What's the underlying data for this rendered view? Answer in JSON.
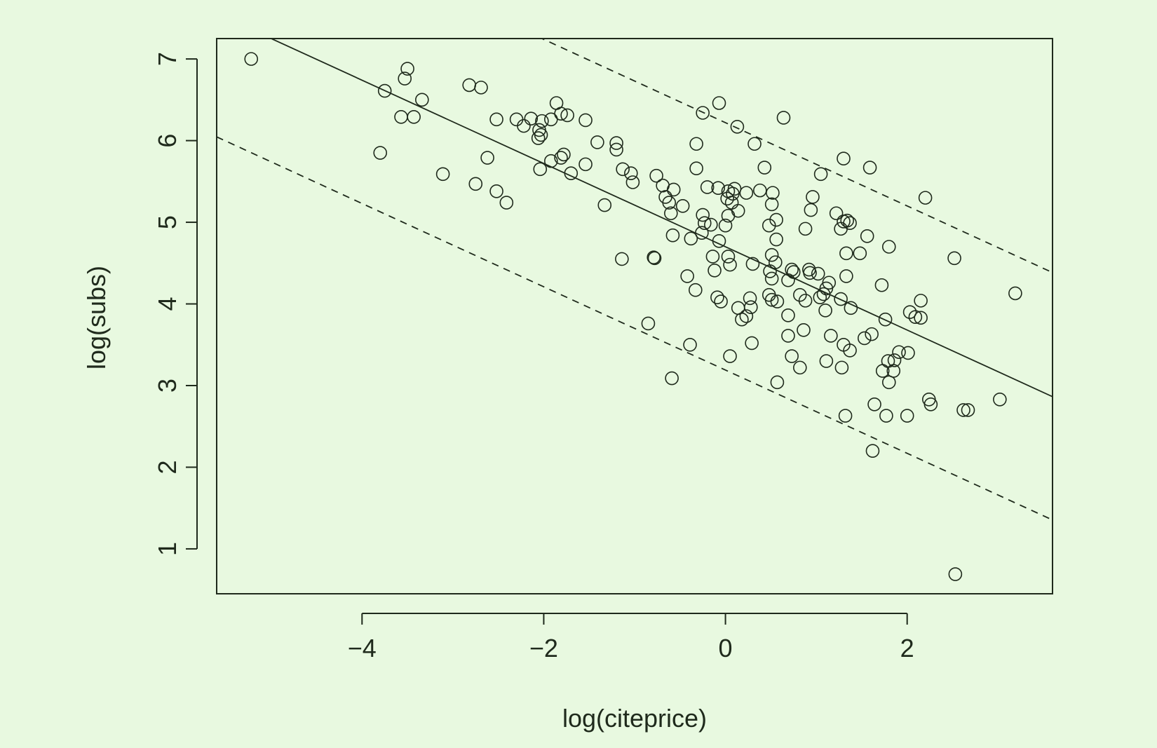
{
  "colors": {
    "background": "#e8f9e0",
    "ink": "#1f2a1c"
  },
  "chart_data": {
    "type": "scatter",
    "title": "",
    "xlabel": "log(citeprice)",
    "ylabel": "log(subs)",
    "xlim": [
      -5.6,
      3.6
    ],
    "ylim": [
      0.45,
      7.25
    ],
    "x_ticks": [
      -4,
      -2,
      0,
      2
    ],
    "x_tick_labels": [
      "−4",
      "−2",
      "0",
      "2"
    ],
    "y_ticks": [
      1,
      2,
      3,
      4,
      5,
      6,
      7
    ],
    "y_tick_labels": [
      "1",
      "2",
      "3",
      "4",
      "5",
      "6",
      "7"
    ],
    "grid": false,
    "legend": "none",
    "marker": "open-circle",
    "lines": [
      {
        "style": "solid",
        "intercept": 4.7,
        "slope": -0.51
      },
      {
        "style": "dashed",
        "intercept": 6.22,
        "slope": -0.51
      },
      {
        "style": "dashed",
        "intercept": 3.19,
        "slope": -0.51
      }
    ],
    "points": [
      [
        -5.22,
        7.0
      ],
      [
        -3.5,
        6.88
      ],
      [
        -3.53,
        6.76
      ],
      [
        -3.75,
        6.61
      ],
      [
        -3.34,
        6.5
      ],
      [
        -3.57,
        6.29
      ],
      [
        -3.43,
        6.29
      ],
      [
        -3.8,
        5.85
      ],
      [
        -3.11,
        5.59
      ],
      [
        -2.82,
        6.68
      ],
      [
        -2.69,
        6.65
      ],
      [
        -2.52,
        6.26
      ],
      [
        -2.3,
        6.26
      ],
      [
        -2.14,
        6.27
      ],
      [
        -2.22,
        6.18
      ],
      [
        -2.02,
        6.24
      ],
      [
        -2.05,
        6.13
      ],
      [
        -2.06,
        6.03
      ],
      [
        -2.03,
        6.07
      ],
      [
        -1.86,
        6.46
      ],
      [
        -1.92,
        6.26
      ],
      [
        -1.81,
        6.33
      ],
      [
        -1.74,
        6.31
      ],
      [
        -1.54,
        6.25
      ],
      [
        -2.62,
        5.79
      ],
      [
        -1.78,
        5.83
      ],
      [
        -1.92,
        5.75
      ],
      [
        -1.81,
        5.79
      ],
      [
        -2.04,
        5.65
      ],
      [
        -1.7,
        5.6
      ],
      [
        -1.54,
        5.71
      ],
      [
        -1.41,
        5.98
      ],
      [
        -1.2,
        5.97
      ],
      [
        -1.2,
        5.89
      ],
      [
        -1.13,
        5.65
      ],
      [
        -1.04,
        5.6
      ],
      [
        -1.02,
        5.49
      ],
      [
        -2.75,
        5.47
      ],
      [
        -2.52,
        5.38
      ],
      [
        -2.41,
        5.24
      ],
      [
        -1.33,
        5.21
      ],
      [
        -1.14,
        4.55
      ],
      [
        -0.78,
        4.56
      ],
      [
        -0.79,
        4.57
      ],
      [
        -0.85,
        3.76
      ],
      [
        -0.76,
        5.57
      ],
      [
        -0.69,
        5.45
      ],
      [
        -0.57,
        5.4
      ],
      [
        -0.66,
        5.31
      ],
      [
        -0.62,
        5.24
      ],
      [
        -0.6,
        5.11
      ],
      [
        -0.47,
        5.2
      ],
      [
        -0.58,
        4.84
      ],
      [
        -0.38,
        4.8
      ],
      [
        -0.42,
        4.34
      ],
      [
        -0.33,
        4.17
      ],
      [
        -0.39,
        3.5
      ],
      [
        -0.59,
        3.09
      ],
      [
        -0.32,
        5.96
      ],
      [
        -0.25,
        6.34
      ],
      [
        -0.07,
        6.46
      ],
      [
        -0.32,
        5.66
      ],
      [
        -0.2,
        5.43
      ],
      [
        -0.08,
        5.42
      ],
      [
        0.03,
        5.38
      ],
      [
        0.1,
        5.41
      ],
      [
        0.08,
        5.35
      ],
      [
        0.02,
        5.29
      ],
      [
        0.07,
        5.24
      ],
      [
        0.14,
        5.14
      ],
      [
        0.03,
        5.08
      ],
      [
        -0.25,
        5.09
      ],
      [
        -0.23,
        4.99
      ],
      [
        -0.16,
        4.97
      ],
      [
        -0.26,
        4.87
      ],
      [
        0.0,
        4.96
      ],
      [
        -0.07,
        4.77
      ],
      [
        -0.14,
        4.58
      ],
      [
        0.03,
        4.58
      ],
      [
        0.05,
        4.48
      ],
      [
        -0.12,
        4.41
      ],
      [
        -0.09,
        4.08
      ],
      [
        -0.05,
        4.03
      ],
      [
        0.13,
        6.17
      ],
      [
        0.32,
        5.96
      ],
      [
        0.23,
        5.36
      ],
      [
        0.38,
        5.39
      ],
      [
        0.43,
        5.67
      ],
      [
        0.52,
        5.36
      ],
      [
        0.51,
        5.22
      ],
      [
        0.56,
        5.03
      ],
      [
        0.48,
        4.96
      ],
      [
        0.56,
        4.79
      ],
      [
        0.51,
        4.6
      ],
      [
        0.55,
        4.51
      ],
      [
        0.3,
        4.49
      ],
      [
        0.49,
        4.4
      ],
      [
        0.51,
        4.31
      ],
      [
        0.69,
        4.29
      ],
      [
        0.73,
        4.42
      ],
      [
        0.75,
        4.39
      ],
      [
        0.92,
        4.42
      ],
      [
        0.93,
        4.38
      ],
      [
        1.02,
        4.37
      ],
      [
        1.04,
        4.08
      ],
      [
        1.08,
        4.12
      ],
      [
        1.11,
        4.19
      ],
      [
        1.14,
        4.26
      ],
      [
        1.1,
        3.92
      ],
      [
        0.48,
        4.11
      ],
      [
        0.51,
        4.05
      ],
      [
        0.57,
        4.03
      ],
      [
        0.27,
        4.07
      ],
      [
        0.14,
        3.95
      ],
      [
        0.28,
        3.96
      ],
      [
        0.23,
        3.85
      ],
      [
        0.18,
        3.81
      ],
      [
        0.69,
        3.86
      ],
      [
        0.82,
        4.11
      ],
      [
        0.88,
        4.04
      ],
      [
        0.86,
        3.68
      ],
      [
        0.69,
        3.61
      ],
      [
        0.73,
        3.36
      ],
      [
        0.82,
        3.22
      ],
      [
        0.29,
        3.52
      ],
      [
        0.05,
        3.36
      ],
      [
        0.57,
        3.04
      ],
      [
        0.64,
        6.28
      ],
      [
        0.96,
        5.31
      ],
      [
        0.94,
        5.15
      ],
      [
        0.88,
        4.92
      ],
      [
        1.05,
        5.59
      ],
      [
        1.3,
        5.78
      ],
      [
        1.22,
        5.11
      ],
      [
        1.27,
        4.92
      ],
      [
        1.3,
        5.01
      ],
      [
        1.34,
        5.02
      ],
      [
        1.37,
        4.99
      ],
      [
        1.33,
        4.62
      ],
      [
        1.33,
        4.34
      ],
      [
        1.48,
        4.62
      ],
      [
        1.56,
        4.83
      ],
      [
        1.59,
        5.67
      ],
      [
        1.8,
        4.7
      ],
      [
        1.27,
        4.06
      ],
      [
        1.38,
        3.95
      ],
      [
        1.16,
        3.61
      ],
      [
        1.3,
        3.5
      ],
      [
        1.37,
        3.43
      ],
      [
        1.11,
        3.3
      ],
      [
        1.28,
        3.22
      ],
      [
        1.53,
        3.58
      ],
      [
        1.61,
        3.63
      ],
      [
        1.72,
        4.23
      ],
      [
        1.76,
        3.81
      ],
      [
        1.79,
        3.3
      ],
      [
        1.86,
        3.31
      ],
      [
        1.73,
        3.18
      ],
      [
        1.85,
        3.18
      ],
      [
        1.8,
        3.04
      ],
      [
        1.91,
        3.41
      ],
      [
        2.01,
        3.4
      ],
      [
        2.03,
        3.9
      ],
      [
        2.09,
        3.84
      ],
      [
        2.15,
        3.83
      ],
      [
        2.15,
        4.04
      ],
      [
        2.2,
        5.3
      ],
      [
        1.32,
        2.63
      ],
      [
        1.64,
        2.77
      ],
      [
        1.77,
        2.63
      ],
      [
        1.62,
        2.2
      ],
      [
        2.0,
        2.63
      ],
      [
        2.24,
        2.83
      ],
      [
        2.26,
        2.77
      ],
      [
        2.52,
        4.56
      ],
      [
        2.62,
        2.7
      ],
      [
        2.67,
        2.7
      ],
      [
        3.02,
        2.83
      ],
      [
        3.19,
        4.13
      ],
      [
        2.53,
        0.69
      ]
    ]
  }
}
